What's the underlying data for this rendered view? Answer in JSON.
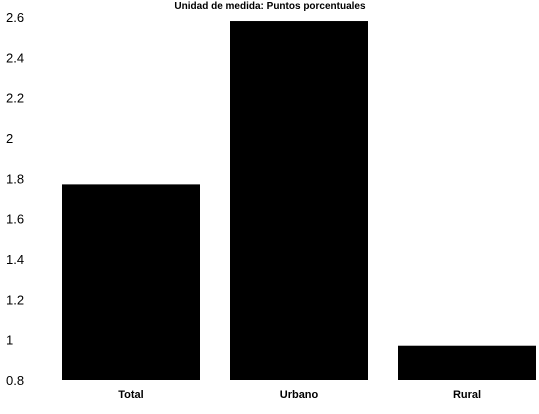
{
  "chart_data": {
    "type": "bar",
    "title": "Unidad de medida: Puntos porcentuales",
    "xlabel": "",
    "ylabel": "",
    "categories": [
      "Total",
      "Urbano",
      "Rural"
    ],
    "values": [
      1.77,
      2.58,
      0.97
    ],
    "ylim": [
      0.8,
      2.6
    ],
    "yticks": [
      0.8,
      1,
      1.2,
      1.4,
      1.6,
      1.8,
      2,
      2.2,
      2.4,
      2.6
    ],
    "ytick_labels": [
      "0.8",
      "1",
      "1.2",
      "1.4",
      "1.6",
      "1.8",
      "2",
      "2.2",
      "2.4",
      "2.6"
    ],
    "grid": false,
    "legend": "none",
    "bar_color": "#000000"
  }
}
